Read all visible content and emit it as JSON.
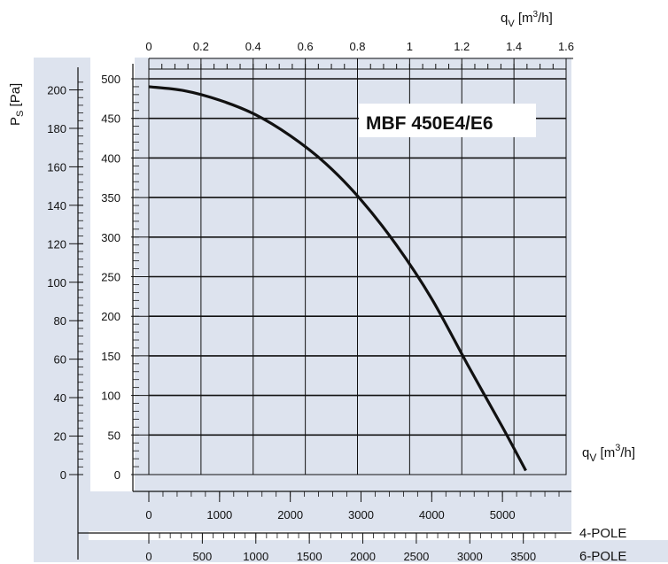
{
  "chart_data": {
    "type": "line",
    "title": "MBF 450E4/E6",
    "colors": {
      "panel": "#dde3ee",
      "grid": "#111111",
      "curve": "#111111",
      "background": "#ffffff"
    },
    "grid": true,
    "ylabel_main": "500 scale",
    "y_ticks_main": [
      0,
      50,
      100,
      150,
      200,
      250,
      300,
      350,
      400,
      450,
      500
    ],
    "ylim_main": [
      0,
      500
    ],
    "y_label_outer": {
      "base": "P",
      "sub": "S",
      "rest": " [Pa]"
    },
    "y_ticks_outer": [
      0,
      20,
      40,
      60,
      80,
      100,
      120,
      140,
      160,
      180,
      200
    ],
    "x_top": {
      "label_base": "q",
      "label_sub": "V",
      "label_rest": " [m",
      "label_sup": "3",
      "label_end": "/h]",
      "ticks": [
        "0",
        "0.2",
        "0.4",
        "0.6",
        "0.8",
        "1",
        "1.2",
        "1.4",
        "1.6"
      ]
    },
    "x_right_label": {
      "base": "q",
      "sub": "V",
      "rest": " [m",
      "sup": "3",
      "end": "/h]"
    },
    "x_4pole": {
      "label": "4-POLE",
      "ticks": [
        "0",
        "1000",
        "2000",
        "3000",
        "4000",
        "5000"
      ]
    },
    "x_6pole": {
      "label": "6-POLE",
      "ticks": [
        "0",
        "500",
        "1000",
        "1500",
        "2000",
        "2500",
        "3000",
        "3500"
      ]
    },
    "series": [
      {
        "x": [
          0,
          500,
          1000,
          1500,
          2000,
          2500,
          3000,
          3500,
          4000,
          4500,
          5000,
          5330
        ],
        "y": [
          490,
          485,
          473,
          455,
          428,
          393,
          347,
          290,
          222,
          140,
          60,
          5
        ]
      }
    ],
    "xlim_4pole": [
      0,
      5900
    ]
  }
}
